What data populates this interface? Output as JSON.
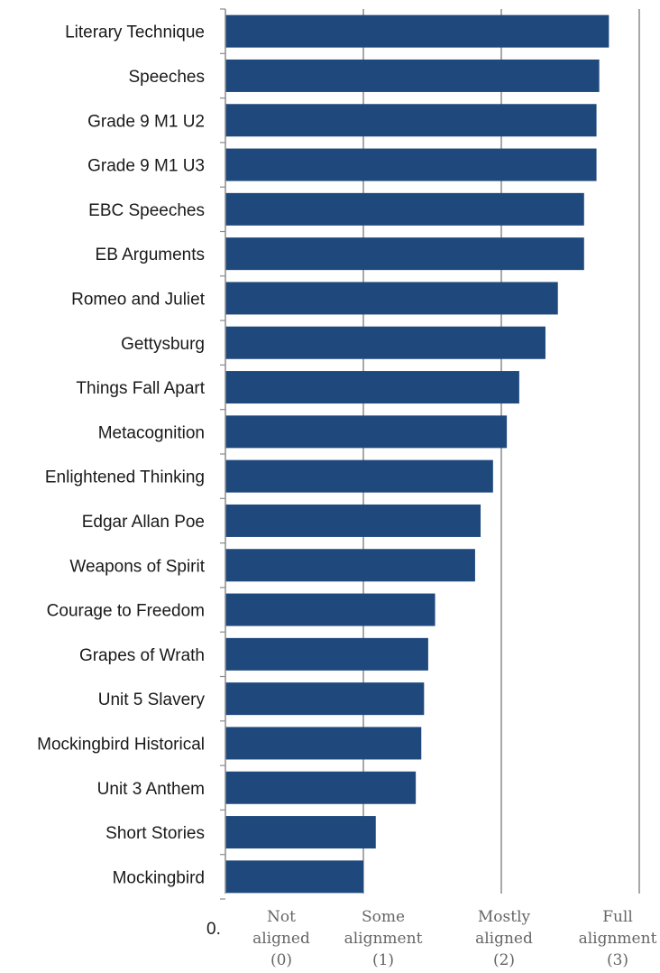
{
  "chart_data": {
    "type": "bar",
    "orientation": "horizontal",
    "categories": [
      "Literary Technique",
      "Speeches",
      "Grade 9 M1 U2",
      "Grade 9 M1 U3",
      "EBC Speeches",
      "EB Arguments",
      "Romeo and Juliet",
      "Gettysburg",
      "Things Fall Apart",
      "Metacognition",
      "Enlightened Thinking",
      "Edgar Allan Poe",
      "Weapons of Spirit",
      "Courage to Freedom",
      "Grapes of Wrath",
      "Unit 5 Slavery",
      "Mockingbird Historical",
      "Unit 3 Anthem",
      "Short Stories",
      "Mockingbird"
    ],
    "values": [
      2.78,
      2.71,
      2.69,
      2.69,
      2.6,
      2.6,
      2.41,
      2.32,
      2.13,
      2.04,
      1.94,
      1.85,
      1.81,
      1.52,
      1.47,
      1.44,
      1.42,
      1.38,
      1.09,
      1.0
    ],
    "xlim": [
      0,
      3
    ],
    "xticks": [
      {
        "value": 0,
        "lines": [
          "Not",
          "aligned",
          "(0)"
        ]
      },
      {
        "value": 1,
        "lines": [
          "Some",
          "alignment",
          "(1)"
        ]
      },
      {
        "value": 2,
        "lines": [
          "Mostly",
          "aligned",
          "(2)"
        ]
      },
      {
        "value": 3,
        "lines": [
          "Full",
          "alignment",
          "(3)"
        ]
      }
    ],
    "origin_label": "0.",
    "grid": true,
    "bar_color": "#1f497d",
    "grid_color": "#8c8c8c",
    "title": "",
    "xlabel": "",
    "ylabel": ""
  }
}
